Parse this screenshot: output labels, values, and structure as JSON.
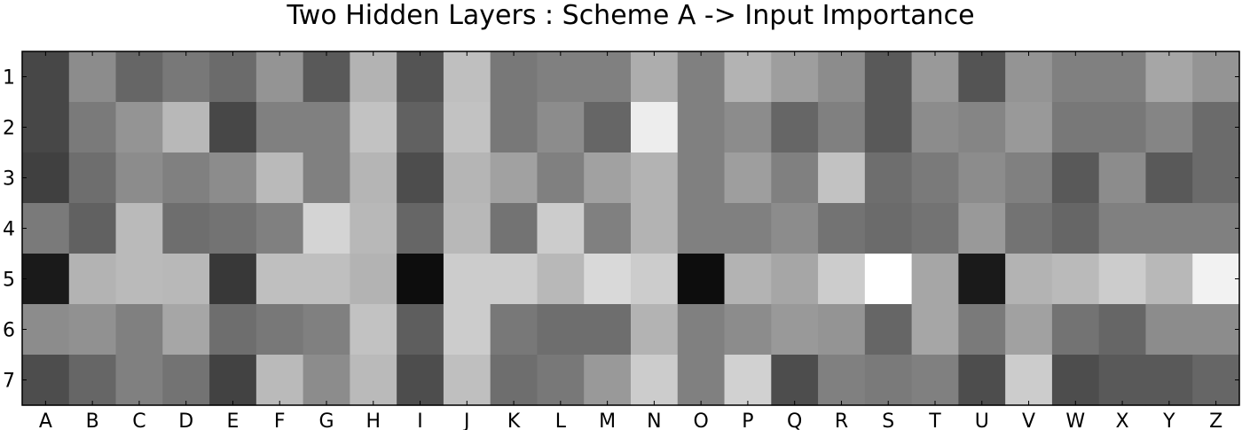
{
  "chart_data": {
    "type": "heatmap",
    "title": "Two Hidden Layers : Scheme A -> Input Importance",
    "xlabel": "",
    "ylabel": "",
    "colormap": "gray",
    "grid": false,
    "x_categories": [
      "A",
      "B",
      "C",
      "D",
      "E",
      "F",
      "G",
      "H",
      "I",
      "J",
      "K",
      "L",
      "M",
      "N",
      "O",
      "P",
      "Q",
      "R",
      "S",
      "T",
      "U",
      "V",
      "W",
      "X",
      "Y",
      "Z"
    ],
    "y_categories": [
      "1",
      "2",
      "3",
      "4",
      "5",
      "6",
      "7"
    ],
    "values": [
      [
        0.28,
        0.55,
        0.4,
        0.47,
        0.42,
        0.58,
        0.35,
        0.7,
        0.33,
        0.75,
        0.47,
        0.5,
        0.5,
        0.68,
        0.5,
        0.7,
        0.62,
        0.55,
        0.35,
        0.6,
        0.33,
        0.58,
        0.5,
        0.5,
        0.65,
        0.58
      ],
      [
        0.28,
        0.48,
        0.58,
        0.72,
        0.28,
        0.5,
        0.5,
        0.76,
        0.38,
        0.76,
        0.47,
        0.55,
        0.4,
        0.93,
        0.5,
        0.55,
        0.4,
        0.5,
        0.35,
        0.55,
        0.52,
        0.6,
        0.47,
        0.47,
        0.52,
        0.42
      ],
      [
        0.25,
        0.43,
        0.55,
        0.5,
        0.55,
        0.73,
        0.5,
        0.71,
        0.3,
        0.71,
        0.63,
        0.5,
        0.63,
        0.7,
        0.5,
        0.62,
        0.5,
        0.76,
        0.43,
        0.48,
        0.55,
        0.5,
        0.35,
        0.55,
        0.35,
        0.42
      ],
      [
        0.48,
        0.38,
        0.73,
        0.43,
        0.45,
        0.5,
        0.83,
        0.72,
        0.4,
        0.72,
        0.45,
        0.8,
        0.5,
        0.7,
        0.5,
        0.5,
        0.55,
        0.45,
        0.42,
        0.45,
        0.6,
        0.45,
        0.4,
        0.5,
        0.5,
        0.5
      ],
      [
        0.1,
        0.7,
        0.73,
        0.72,
        0.22,
        0.75,
        0.75,
        0.7,
        0.05,
        0.8,
        0.8,
        0.72,
        0.85,
        0.8,
        0.05,
        0.7,
        0.65,
        0.8,
        1.0,
        0.65,
        0.1,
        0.7,
        0.73,
        0.8,
        0.72,
        0.95
      ],
      [
        0.55,
        0.57,
        0.5,
        0.65,
        0.43,
        0.47,
        0.5,
        0.76,
        0.37,
        0.8,
        0.47,
        0.43,
        0.43,
        0.7,
        0.5,
        0.55,
        0.6,
        0.58,
        0.4,
        0.65,
        0.48,
        0.63,
        0.45,
        0.4,
        0.55,
        0.55
      ],
      [
        0.3,
        0.4,
        0.5,
        0.45,
        0.26,
        0.73,
        0.55,
        0.73,
        0.3,
        0.75,
        0.43,
        0.47,
        0.6,
        0.8,
        0.5,
        0.82,
        0.3,
        0.5,
        0.48,
        0.5,
        0.3,
        0.8,
        0.3,
        0.35,
        0.35,
        0.4
      ]
    ]
  }
}
